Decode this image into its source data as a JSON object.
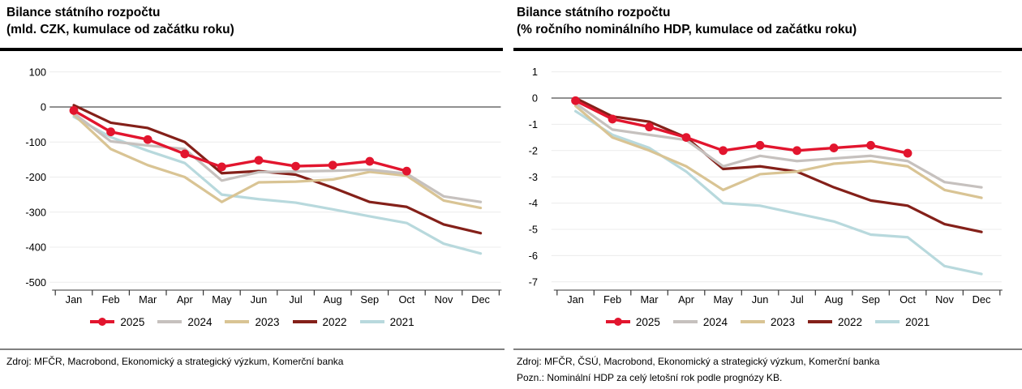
{
  "chart_data": [
    {
      "type": "line",
      "title": "Bilance státního rozpočtu",
      "subtitle": "(mld. CZK, kumulace od začátku roku)",
      "x": [
        "Jan",
        "Feb",
        "Mar",
        "Apr",
        "May",
        "Jun",
        "Jul",
        "Aug",
        "Sep",
        "Oct",
        "Nov",
        "Dec"
      ],
      "ylim": [
        -500,
        100
      ],
      "yticks": [
        100,
        0,
        -100,
        -200,
        -300,
        -400,
        -500
      ],
      "grid": true,
      "legend_position": "bottom",
      "series": [
        {
          "name": "2025",
          "color": "#e2152e",
          "marker": true,
          "values": [
            -10,
            -71,
            -93,
            -134,
            -171,
            -152,
            -169,
            -166,
            -155,
            -183
          ]
        },
        {
          "name": "2024",
          "color": "#c6c1be",
          "values": [
            -18,
            -98,
            -110,
            -120,
            -210,
            -186,
            -184,
            -182,
            -179,
            -190,
            -255,
            -271
          ]
        },
        {
          "name": "2023",
          "color": "#d9c494",
          "values": [
            -22,
            -120,
            -166,
            -200,
            -271,
            -215,
            -213,
            -207,
            -185,
            -196,
            -267,
            -288
          ]
        },
        {
          "name": "2022",
          "color": "#842019",
          "values": [
            5,
            -45,
            -60,
            -100,
            -189,
            -183,
            -193,
            -230,
            -271,
            -285,
            -335,
            -360
          ]
        },
        {
          "name": "2021",
          "color": "#b8d9dd",
          "values": [
            -28,
            -86,
            -125,
            -160,
            -250,
            -263,
            -273,
            -292,
            -312,
            -331,
            -390,
            -418
          ]
        }
      ],
      "source": "Zdroj: MFČR, Macrobond, Ekonomický a strategický výzkum, Komerční banka"
    },
    {
      "type": "line",
      "title": "Bilance státního rozpočtu",
      "subtitle": "(% ročního nominálního HDP, kumulace od začátku roku)",
      "x": [
        "Jan",
        "Feb",
        "Mar",
        "Apr",
        "May",
        "Jun",
        "Jul",
        "Aug",
        "Sep",
        "Oct",
        "Nov",
        "Dec"
      ],
      "ylim": [
        -7,
        1
      ],
      "yticks": [
        1,
        0,
        -1,
        -2,
        -3,
        -4,
        -5,
        -6,
        -7
      ],
      "grid": true,
      "legend_position": "bottom",
      "series": [
        {
          "name": "2025",
          "color": "#e2152e",
          "marker": true,
          "values": [
            -0.1,
            -0.8,
            -1.1,
            -1.5,
            -2.0,
            -1.8,
            -2.0,
            -1.9,
            -1.8,
            -2.1
          ]
        },
        {
          "name": "2024",
          "color": "#c6c1be",
          "values": [
            -0.2,
            -1.2,
            -1.4,
            -1.6,
            -2.6,
            -2.2,
            -2.4,
            -2.3,
            -2.2,
            -2.4,
            -3.2,
            -3.4
          ]
        },
        {
          "name": "2023",
          "color": "#d9c494",
          "values": [
            -0.3,
            -1.5,
            -2.0,
            -2.6,
            -3.5,
            -2.9,
            -2.8,
            -2.5,
            -2.4,
            -2.6,
            -3.5,
            -3.8
          ]
        },
        {
          "name": "2022",
          "color": "#842019",
          "values": [
            0.0,
            -0.7,
            -0.9,
            -1.5,
            -2.7,
            -2.6,
            -2.8,
            -3.4,
            -3.9,
            -4.1,
            -4.8,
            -5.1
          ]
        },
        {
          "name": "2021",
          "color": "#b8d9dd",
          "values": [
            -0.5,
            -1.4,
            -1.9,
            -2.8,
            -4.0,
            -4.1,
            -4.4,
            -4.7,
            -5.2,
            -5.3,
            -6.4,
            -6.7
          ]
        }
      ],
      "source": "Zdroj: MFČR, ČSÚ, Macrobond, Ekonomický a strategický výzkum, Komerční banka",
      "note": "Pozn.: Nominální HDP za celý letošní rok podle prognózy KB."
    }
  ],
  "colors": {
    "accent_red": "#e2152e",
    "gray_2024": "#c6c1be",
    "tan_2023": "#d9c494",
    "maroon_2022": "#842019",
    "blue_2021": "#b8d9dd",
    "grid": "#ececec",
    "zero_line": "#4d4d4d",
    "axis_line": "#8c8c8c",
    "rule_thick": "#000000",
    "rule_thin": "#808080"
  }
}
